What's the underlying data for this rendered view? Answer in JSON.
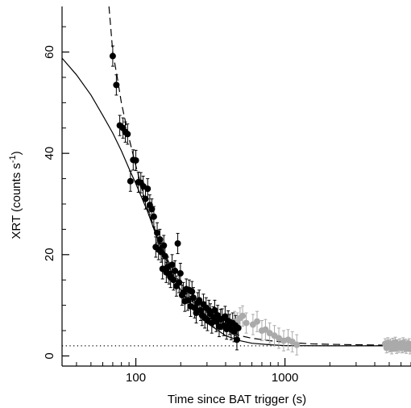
{
  "chart_data": {
    "type": "scatter",
    "xlabel": "Time since BAT trigger (s)",
    "ylabel": "XRT (counts s",
    "ylabel_exponent": "-1",
    "ylabel_suffix": ")",
    "x_scale": "log",
    "xlim": [
      32,
      7000
    ],
    "ylim": [
      -2,
      69
    ],
    "x_ticks": [
      100,
      1000
    ],
    "x_tick_labels": [
      "100",
      "1000"
    ],
    "y_ticks": [
      0,
      20,
      40,
      60
    ],
    "y_tick_labels": [
      "0",
      "20",
      "40",
      "60"
    ],
    "grid": false,
    "legend": "none",
    "baseline_level": 2.0,
    "series": [
      {
        "color": "#000000",
        "marker": "filled-circle",
        "points": [
          [
            70,
            59.2,
            2.0
          ],
          [
            74,
            53.5,
            2.0
          ],
          [
            78,
            45.5,
            2.0
          ],
          [
            82,
            45.0,
            2.0
          ],
          [
            85,
            44.2,
            2.0
          ],
          [
            88,
            43.8,
            2.0
          ],
          [
            92,
            34.5,
            2.0
          ],
          [
            96,
            38.7,
            2.0
          ],
          [
            100,
            38.6,
            2.0
          ],
          [
            104,
            34.3,
            2.0
          ],
          [
            108,
            34.2,
            2.0
          ],
          [
            112,
            33.5,
            2.0
          ],
          [
            116,
            31.0,
            2.0
          ],
          [
            120,
            33.0,
            2.0
          ],
          [
            124,
            29.8,
            2.0
          ],
          [
            128,
            29.0,
            2.0
          ],
          [
            132,
            27.5,
            2.0
          ],
          [
            136,
            21.5,
            2.0
          ],
          [
            139,
            24.3,
            2.0
          ],
          [
            142,
            21.0,
            2.0
          ],
          [
            145,
            23.0,
            2.0
          ],
          [
            148,
            20.5,
            2.0
          ],
          [
            151,
            17.2,
            2.0
          ],
          [
            154,
            21.8,
            2.0
          ],
          [
            157,
            19.7,
            2.0
          ],
          [
            160,
            16.5,
            2.0
          ],
          [
            163,
            17.5,
            2.0
          ],
          [
            167,
            16.2,
            2.0
          ],
          [
            171,
            15.5,
            2.0
          ],
          [
            175,
            18.0,
            2.0
          ],
          [
            179,
            15.0,
            2.0
          ],
          [
            183,
            16.8,
            2.0
          ],
          [
            187,
            13.8,
            2.0
          ],
          [
            191,
            22.2,
            2.0
          ],
          [
            195,
            14.5,
            2.0
          ],
          [
            199,
            16.3,
            2.0
          ],
          [
            204,
            12.0,
            2.0
          ],
          [
            208,
            12.5,
            2.0
          ],
          [
            213,
            10.8,
            2.0
          ],
          [
            218,
            13.2,
            2.0
          ],
          [
            223,
            11.0,
            2.0
          ],
          [
            228,
            13.0,
            2.0
          ],
          [
            233,
            9.8,
            2.0
          ],
          [
            238,
            12.7,
            2.0
          ],
          [
            243,
            11.5,
            2.0
          ],
          [
            248,
            9.5,
            2.0
          ],
          [
            254,
            8.5,
            2.0
          ],
          [
            260,
            10.5,
            2.0
          ],
          [
            266,
            11.0,
            2.0
          ],
          [
            272,
            9.0,
            2.0
          ],
          [
            278,
            8.0,
            2.0
          ],
          [
            284,
            10.2,
            2.0
          ],
          [
            290,
            7.5,
            2.0
          ],
          [
            296,
            9.5,
            2.0
          ],
          [
            302,
            7.0,
            2.0
          ],
          [
            309,
            9.0,
            2.0
          ],
          [
            316,
            8.3,
            2.0
          ],
          [
            323,
            6.5,
            2.0
          ],
          [
            330,
            7.7,
            2.0
          ],
          [
            338,
            9.0,
            2.0
          ],
          [
            346,
            6.8,
            2.0
          ],
          [
            354,
            8.0,
            2.0
          ],
          [
            362,
            5.8,
            2.0
          ],
          [
            370,
            7.2,
            2.0
          ],
          [
            379,
            7.3,
            2.0
          ],
          [
            388,
            6.0,
            2.0
          ],
          [
            397,
            7.8,
            2.0
          ],
          [
            406,
            5.3,
            2.0
          ],
          [
            416,
            6.9,
            2.0
          ],
          [
            426,
            6.2,
            2.0
          ],
          [
            436,
            5.2,
            2.0
          ],
          [
            446,
            6.5,
            2.0
          ],
          [
            456,
            4.8,
            2.0
          ],
          [
            466,
            6.0,
            2.0
          ],
          [
            476,
            3.2,
            2.0
          ],
          [
            486,
            5.5,
            2.0
          ]
        ]
      },
      {
        "color": "#aaaaaa",
        "marker": "filled-circle",
        "points": [
          [
            460,
            6.8,
            2.0
          ],
          [
            480,
            6.5,
            2.0
          ],
          [
            500,
            7.5,
            2.0
          ],
          [
            520,
            7.9,
            2.0
          ],
          [
            550,
            6.5,
            2.0
          ],
          [
            610,
            6.2,
            2.0
          ],
          [
            650,
            6.8,
            2.0
          ],
          [
            700,
            5.0,
            2.0
          ],
          [
            740,
            5.2,
            2.0
          ],
          [
            790,
            4.5,
            2.0
          ],
          [
            850,
            4.0,
            2.0
          ],
          [
            910,
            3.5,
            2.0
          ],
          [
            980,
            3.0,
            2.0
          ],
          [
            1050,
            3.2,
            2.0
          ],
          [
            1120,
            2.8,
            2.0
          ],
          [
            1200,
            2.2,
            2.0
          ],
          [
            4700,
            2.4,
            1.0
          ],
          [
            4800,
            1.6,
            1.0
          ],
          [
            4900,
            2.6,
            1.0
          ],
          [
            5000,
            1.8,
            1.0
          ],
          [
            5100,
            2.3,
            1.0
          ],
          [
            5200,
            1.4,
            1.0
          ],
          [
            5300,
            2.5,
            1.0
          ],
          [
            5400,
            1.9,
            1.0
          ],
          [
            5500,
            2.7,
            1.0
          ],
          [
            5600,
            1.5,
            1.0
          ],
          [
            5700,
            2.2,
            1.0
          ],
          [
            5800,
            1.7,
            1.0
          ],
          [
            5900,
            2.4,
            1.0
          ],
          [
            6000,
            2.0,
            1.0
          ],
          [
            6100,
            1.6,
            1.0
          ],
          [
            6200,
            2.6,
            1.0
          ],
          [
            6300,
            1.8,
            1.0
          ],
          [
            6400,
            2.3,
            1.0
          ],
          [
            6500,
            1.5,
            1.0
          ],
          [
            6600,
            2.1,
            1.0
          ],
          [
            6700,
            1.9,
            1.0
          ],
          [
            6800,
            2.4,
            1.0
          ],
          [
            6900,
            1.4,
            1.0
          ]
        ]
      }
    ],
    "curves": [
      {
        "style": "solid",
        "points": [
          [
            32,
            58.8
          ],
          [
            40,
            55.5
          ],
          [
            50,
            51.5
          ],
          [
            60,
            47.5
          ],
          [
            70,
            44.0
          ],
          [
            80,
            40.5
          ],
          [
            90,
            37.0
          ],
          [
            100,
            34.0
          ],
          [
            120,
            28.5
          ],
          [
            140,
            23.0
          ],
          [
            160,
            19.0
          ],
          [
            180,
            15.5
          ],
          [
            200,
            13.0
          ],
          [
            250,
            9.0
          ],
          [
            300,
            6.5
          ],
          [
            400,
            4.0
          ],
          [
            500,
            3.0
          ],
          [
            600,
            2.5
          ],
          [
            800,
            2.2
          ],
          [
            1000,
            2.05
          ],
          [
            2000,
            2.0
          ],
          [
            7000,
            2.0
          ]
        ]
      },
      {
        "style": "dashed",
        "points": [
          [
            66,
            69
          ],
          [
            68,
            64.5
          ],
          [
            70,
            60.0
          ],
          [
            75,
            55.0
          ],
          [
            80,
            50.0
          ],
          [
            90,
            43.0
          ],
          [
            100,
            37.5
          ],
          [
            120,
            29.0
          ],
          [
            140,
            23.5
          ],
          [
            160,
            19.5
          ],
          [
            200,
            14.0
          ],
          [
            250,
            10.0
          ],
          [
            300,
            7.8
          ],
          [
            400,
            5.2
          ],
          [
            500,
            4.0
          ],
          [
            600,
            3.5
          ],
          [
            800,
            3.0
          ],
          [
            1000,
            2.7
          ],
          [
            1500,
            2.4
          ],
          [
            2000,
            2.3
          ],
          [
            4000,
            2.15
          ],
          [
            7000,
            2.1
          ]
        ]
      }
    ]
  }
}
